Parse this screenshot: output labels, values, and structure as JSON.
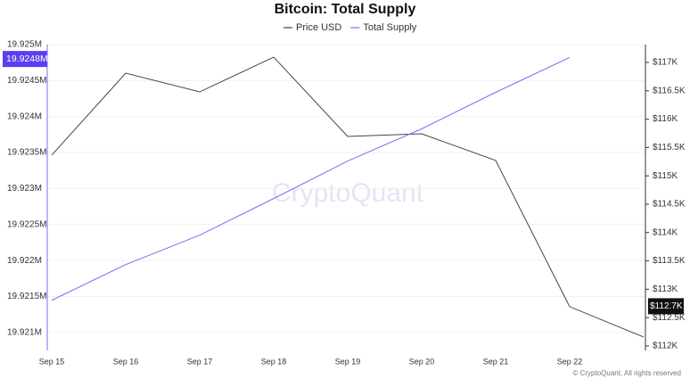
{
  "chart_data": {
    "type": "line",
    "title": "Bitcoin: Total Supply",
    "categories": [
      "Sep 15",
      "Sep 16",
      "Sep 17",
      "Sep 18",
      "Sep 19",
      "Sep 20",
      "Sep 21",
      "Sep 22",
      null
    ],
    "series": [
      {
        "name": "Price USD",
        "color": "#444444",
        "axis": "y2",
        "values": [
          115365,
          116811,
          116481,
          117094,
          115695,
          115742,
          115271,
          112692,
          112157
        ]
      },
      {
        "name": "Total Supply",
        "color": "#7b6cf6",
        "axis": "y",
        "values": [
          19921447,
          19921943,
          19922352,
          19922861,
          19923382,
          19923829,
          19924337,
          19924821,
          null
        ]
      }
    ],
    "ylim": [
      19920750,
      19925000
    ],
    "yticks": [
      {
        "value": 19921000,
        "label": "19.921M"
      },
      {
        "value": 19921500,
        "label": "19.9215M"
      },
      {
        "value": 19922000,
        "label": "19.922M"
      },
      {
        "value": 19922500,
        "label": "19.9225M"
      },
      {
        "value": 19923000,
        "label": "19.923M"
      },
      {
        "value": 19923500,
        "label": "19.9235M"
      },
      {
        "value": 19924000,
        "label": "19.924M"
      },
      {
        "value": 19924500,
        "label": "19.9245M"
      },
      {
        "value": 19925000,
        "label": "19.925M"
      }
    ],
    "y2lim": [
      111920,
      117315
    ],
    "y2ticks": [
      {
        "value": 112000,
        "label": "$112K"
      },
      {
        "value": 112500,
        "label": "$112.5K"
      },
      {
        "value": 113000,
        "label": "$113K"
      },
      {
        "value": 113500,
        "label": "$113.5K"
      },
      {
        "value": 114000,
        "label": "$114K"
      },
      {
        "value": 114500,
        "label": "$114.5K"
      },
      {
        "value": 115000,
        "label": "$115K"
      },
      {
        "value": 115500,
        "label": "$115.5K"
      },
      {
        "value": 116000,
        "label": "$116K"
      },
      {
        "value": 116500,
        "label": "$116.5K"
      },
      {
        "value": 117000,
        "label": "$117K"
      }
    ],
    "y_highlight": {
      "value": 19924800,
      "label": "19.9248M"
    },
    "y2_highlight": {
      "value": 112700,
      "label": "$112.7K"
    },
    "grid": true,
    "legend": "top",
    "watermark": "CryptoQuant",
    "footer": "© CryptoQuant. All rights reserved"
  }
}
